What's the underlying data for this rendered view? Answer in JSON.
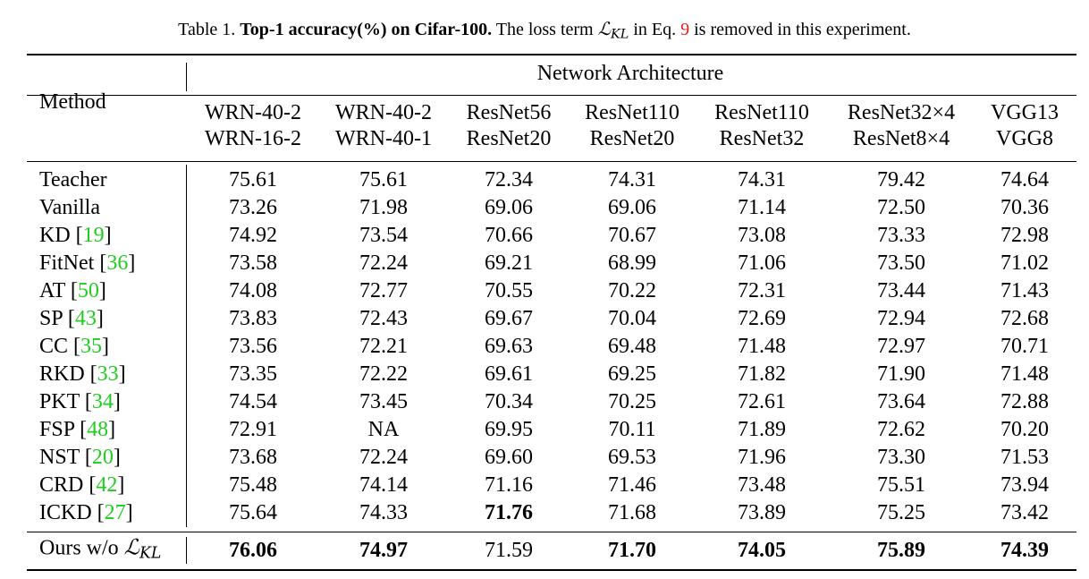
{
  "caption": {
    "label": "Table 1.",
    "title": "Top-1 accuracy(%) on Cifar-100.",
    "pre": "The loss term",
    "symbol": "ℒ",
    "symbol_sub": "KL",
    "mid": "in Eq.",
    "eq_ref": "9",
    "post": "is removed in this experiment."
  },
  "table": {
    "method_header": "Method",
    "group_header": "Network Architecture",
    "columns": [
      {
        "teacher": "WRN-40-2",
        "student": "WRN-16-2"
      },
      {
        "teacher": "WRN-40-2",
        "student": "WRN-40-1"
      },
      {
        "teacher": "ResNet56",
        "student": "ResNet20"
      },
      {
        "teacher": "ResNet110",
        "student": "ResNet20"
      },
      {
        "teacher": "ResNet110",
        "student": "ResNet32"
      },
      {
        "teacher": "ResNet32×4",
        "student": "ResNet8×4"
      },
      {
        "teacher": "VGG13",
        "student": "VGG8"
      }
    ],
    "rows": [
      {
        "method": "Teacher",
        "ref": "",
        "values": [
          "75.61",
          "75.61",
          "72.34",
          "74.31",
          "74.31",
          "79.42",
          "74.64"
        ],
        "bold": []
      },
      {
        "method": "Vanilla",
        "ref": "",
        "values": [
          "73.26",
          "71.98",
          "69.06",
          "69.06",
          "71.14",
          "72.50",
          "70.36"
        ],
        "bold": []
      },
      {
        "method": "KD",
        "ref": "19",
        "values": [
          "74.92",
          "73.54",
          "70.66",
          "70.67",
          "73.08",
          "73.33",
          "72.98"
        ],
        "bold": []
      },
      {
        "method": "FitNet",
        "ref": "36",
        "values": [
          "73.58",
          "72.24",
          "69.21",
          "68.99",
          "71.06",
          "73.50",
          "71.02"
        ],
        "bold": []
      },
      {
        "method": "AT",
        "ref": "50",
        "values": [
          "74.08",
          "72.77",
          "70.55",
          "70.22",
          "72.31",
          "73.44",
          "71.43"
        ],
        "bold": []
      },
      {
        "method": "SP",
        "ref": "43",
        "values": [
          "73.83",
          "72.43",
          "69.67",
          "70.04",
          "72.69",
          "72.94",
          "72.68"
        ],
        "bold": []
      },
      {
        "method": "CC",
        "ref": "35",
        "values": [
          "73.56",
          "72.21",
          "69.63",
          "69.48",
          "71.48",
          "72.97",
          "70.71"
        ],
        "bold": []
      },
      {
        "method": "RKD",
        "ref": "33",
        "values": [
          "73.35",
          "72.22",
          "69.61",
          "69.25",
          "71.82",
          "71.90",
          "71.48"
        ],
        "bold": []
      },
      {
        "method": "PKT",
        "ref": "34",
        "values": [
          "74.54",
          "73.45",
          "70.34",
          "70.25",
          "72.61",
          "73.64",
          "72.88"
        ],
        "bold": []
      },
      {
        "method": "FSP",
        "ref": "48",
        "values": [
          "72.91",
          "NA",
          "69.95",
          "70.11",
          "71.89",
          "72.62",
          "70.20"
        ],
        "bold": []
      },
      {
        "method": "NST",
        "ref": "20",
        "values": [
          "73.68",
          "72.24",
          "69.60",
          "69.53",
          "71.96",
          "73.30",
          "71.53"
        ],
        "bold": []
      },
      {
        "method": "CRD",
        "ref": "42",
        "values": [
          "75.48",
          "74.14",
          "71.16",
          "71.46",
          "73.48",
          "75.51",
          "73.94"
        ],
        "bold": []
      },
      {
        "method": "ICKD",
        "ref": "27",
        "values": [
          "75.64",
          "74.33",
          "71.76",
          "71.68",
          "73.89",
          "75.25",
          "73.42"
        ],
        "bold": [
          2
        ]
      }
    ],
    "ours": {
      "prefix": "Ours w/o",
      "symbol": "ℒ",
      "symbol_sub": "KL",
      "values": [
        "76.06",
        "74.97",
        "71.59",
        "71.70",
        "74.05",
        "75.89",
        "74.39"
      ],
      "bold": [
        0,
        1,
        3,
        4,
        5,
        6
      ]
    }
  }
}
